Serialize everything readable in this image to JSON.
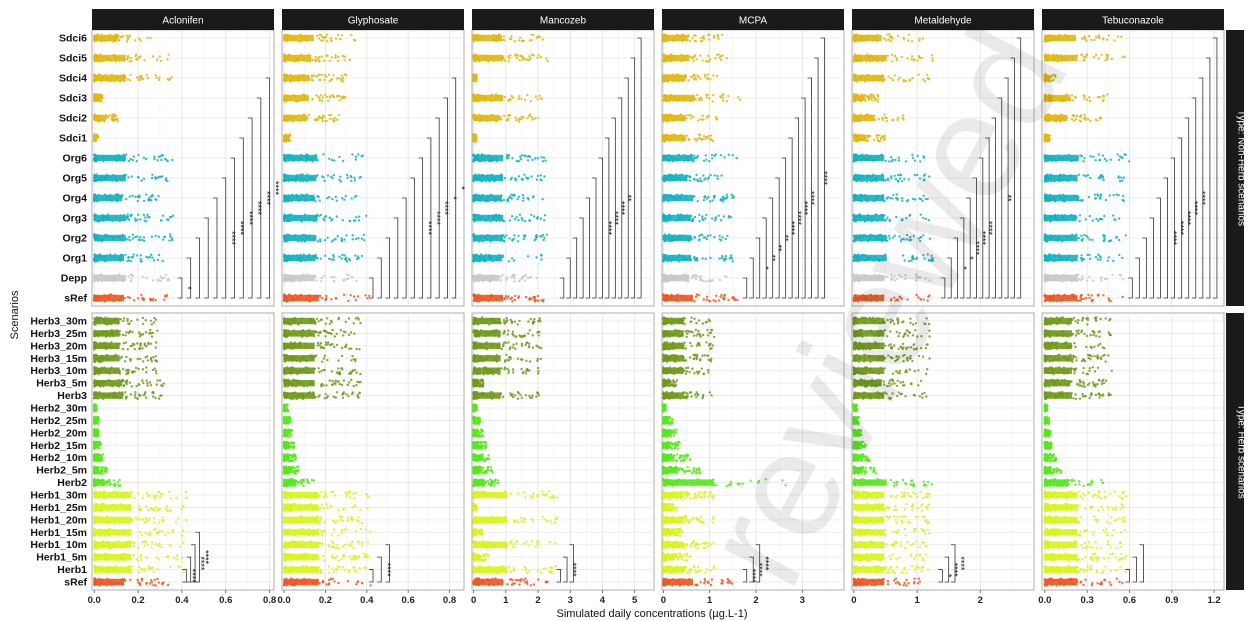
{
  "watermark_text": "reviewed",
  "chart_data": {
    "type": "scatter",
    "subtype": "faceted jitter strip plot with significance brackets",
    "xlabel": "Simulated daily concentrations (µg.L-1)",
    "ylabel": "Scenarios",
    "grid": true,
    "legend": "none",
    "columns": [
      {
        "name": "Aclonifen",
        "ticks": [
          0,
          0.2,
          0.4,
          0.6,
          0.8
        ],
        "tick_labels": [
          "0.0",
          "0.2",
          "0.4",
          "0.6",
          "0.8"
        ],
        "xlim": [
          -0.01,
          0.82
        ]
      },
      {
        "name": "Glyphosate",
        "ticks": [
          0,
          0.2,
          0.4,
          0.6,
          0.8
        ],
        "tick_labels": [
          "0.0",
          "0.2",
          "0.4",
          "0.6",
          "0.8"
        ],
        "xlim": [
          -0.01,
          0.87
        ]
      },
      {
        "name": "Mancozeb",
        "ticks": [
          0,
          1,
          2,
          3,
          4,
          5
        ],
        "tick_labels": [
          "0",
          "1",
          "2",
          "3",
          "4",
          "5"
        ],
        "xlim": [
          -0.05,
          5.6
        ]
      },
      {
        "name": "MCPA",
        "ticks": [
          0,
          1,
          2,
          3
        ],
        "tick_labels": [
          "0",
          "1",
          "2",
          "3"
        ],
        "xlim": [
          -0.03,
          3.9
        ]
      },
      {
        "name": "Metaldehyde",
        "ticks": [
          0,
          1,
          2
        ],
        "tick_labels": [
          "0",
          "1",
          "2"
        ],
        "xlim": [
          -0.03,
          2.85
        ]
      },
      {
        "name": "Tebuconazole",
        "ticks": [
          0,
          0.3,
          0.6,
          0.9,
          1.2
        ],
        "tick_labels": [
          "0.0",
          "0.3",
          "0.6",
          "0.9",
          "1.2"
        ],
        "xlim": [
          -0.02,
          1.27
        ]
      }
    ],
    "rows": [
      {
        "name": "Type: Non-Herb scenarios",
        "categories": [
          "Sdci6",
          "Sdci5",
          "Sdci4",
          "Sdci3",
          "Sdci2",
          "Sdci1",
          "Org6",
          "Org5",
          "Org4",
          "Org3",
          "Org2",
          "Org1",
          "Depp",
          "sRef"
        ],
        "colors": [
          "#e2b70e",
          "#e2b70e",
          "#e2b70e",
          "#e2b70e",
          "#e2b70e",
          "#e2b70e",
          "#12b3c1",
          "#12b3c1",
          "#12b3c1",
          "#12b3c1",
          "#12b3c1",
          "#12b3c1",
          "#c8c8c8",
          "#f0561e"
        ],
        "extents": [
          [
            0.26,
            0.36,
            0.36,
            0.04,
            0.11,
            0.02,
            0.36,
            0.36,
            0.32,
            0.36,
            0.36,
            0.34,
            0.36,
            0.34
          ],
          [
            0.36,
            0.33,
            0.31,
            0.3,
            0.27,
            0.03,
            0.4,
            0.39,
            0.37,
            0.4,
            0.39,
            0.38,
            0.37,
            0.42
          ],
          [
            2.2,
            2.3,
            0.1,
            2.3,
            2.0,
            0.1,
            2.3,
            2.3,
            2.2,
            2.3,
            2.3,
            2.2,
            2.0,
            2.3
          ],
          [
            1.3,
            1.4,
            1.2,
            1.7,
            1.2,
            1.2,
            1.6,
            1.3,
            1.6,
            1.5,
            1.5,
            1.5,
            1.4,
            1.6
          ],
          [
            1.1,
            1.3,
            1.2,
            0.4,
            0.8,
            0.5,
            1.2,
            1.2,
            1.2,
            1.2,
            1.3,
            1.3,
            1.2,
            1.2
          ],
          [
            0.55,
            0.58,
            0.08,
            0.45,
            0.4,
            0.04,
            0.6,
            0.58,
            0.6,
            0.56,
            0.58,
            0.58,
            0.56,
            0.58
          ]
        ],
        "brackets": [
          {
            "x": [
              0.4,
              0.44,
              0.48,
              0.52,
              0.56,
              0.6,
              0.64,
              0.68,
              0.72,
              0.76,
              0.8,
              0.84,
              0.88
            ],
            "labels": [
              "*",
              "",
              "",
              "",
              "",
              "****",
              "****",
              "****",
              "****",
              "****",
              "****",
              "****",
              "****"
            ]
          },
          {
            "x": [
              0.43,
              0.47,
              0.51,
              0.55,
              0.59,
              0.63,
              0.67,
              0.71,
              0.75,
              0.79,
              0.83,
              0.87,
              0.91
            ],
            "labels": [
              "",
              "",
              "",
              "",
              "",
              "",
              "****",
              "****",
              "****",
              "*",
              "*",
              "",
              ""
            ]
          },
          {
            "x": [
              2.8,
              3.0,
              3.2,
              3.4,
              3.6,
              3.8,
              4.0,
              4.2,
              4.4,
              4.6,
              4.8,
              5.0,
              5.2
            ],
            "labels": [
              "",
              "",
              "",
              "",
              "",
              "",
              "****",
              "****",
              "****",
              "**",
              "",
              "",
              ""
            ]
          },
          {
            "x": [
              1.8,
              1.94,
              2.08,
              2.22,
              2.36,
              2.5,
              2.64,
              2.78,
              2.92,
              3.06,
              3.2,
              3.34,
              3.48
            ],
            "labels": [
              "",
              "",
              "*",
              "**",
              "**",
              "**",
              "****",
              "****",
              "****",
              "****",
              "",
              "****",
              ""
            ]
          },
          {
            "x": [
              1.44,
              1.54,
              1.64,
              1.74,
              1.84,
              1.94,
              2.04,
              2.14,
              2.24,
              2.34,
              2.44,
              2.54,
              2.64
            ],
            "labels": [
              "",
              "",
              "*",
              "*",
              "****",
              "****",
              "****",
              "",
              "",
              "**",
              "",
              "",
              ""
            ]
          },
          {
            "x": [
              0.62,
              0.67,
              0.72,
              0.77,
              0.82,
              0.87,
              0.92,
              0.97,
              1.02,
              1.07,
              1.12,
              1.17,
              1.22
            ],
            "labels": [
              "",
              "",
              "",
              "",
              "",
              "****",
              "****",
              "****",
              "****",
              "****",
              "",
              "",
              ""
            ]
          }
        ]
      },
      {
        "name": "Type: Herb scenarios",
        "categories": [
          "Herb3_30m",
          "Herb3_25m",
          "Herb3_20m",
          "Herb3_15m",
          "Herb3_10m",
          "Herb3_5m",
          "Herb3",
          "Herb2_30m",
          "Herb2_25m",
          "Herb2_20m",
          "Herb2_15m",
          "Herb2_10m",
          "Herb2_5m",
          "Herb2",
          "Herb1_30m",
          "Herb1_25m",
          "Herb1_20m",
          "Herb1_15m",
          "Herb1_10m",
          "Herb1_5m",
          "Herb1",
          "sRef"
        ],
        "colors": [
          "#6e9a18",
          "#6e9a18",
          "#6e9a18",
          "#6e9a18",
          "#6e9a18",
          "#6e9a18",
          "#6e9a18",
          "#52ea18",
          "#52ea18",
          "#52ea18",
          "#52ea18",
          "#52ea18",
          "#52ea18",
          "#52ea18",
          "#d7f518",
          "#d7f518",
          "#d7f518",
          "#d7f518",
          "#d7f518",
          "#d7f518",
          "#d7f518",
          "#f0561e"
        ],
        "extents": [
          [
            0.29,
            0.29,
            0.29,
            0.29,
            0.29,
            0.32,
            0.33,
            0.01,
            0.02,
            0.02,
            0.03,
            0.04,
            0.06,
            0.12,
            0.42,
            0.42,
            0.42,
            0.42,
            0.42,
            0.42,
            0.42,
            0.34
          ],
          [
            0.37,
            0.37,
            0.37,
            0.37,
            0.37,
            0.37,
            0.37,
            0.02,
            0.03,
            0.04,
            0.05,
            0.06,
            0.08,
            0.15,
            0.42,
            0.42,
            0.42,
            0.42,
            0.42,
            0.42,
            0.42,
            0.42
          ],
          [
            2.1,
            2.1,
            2.1,
            2.1,
            2.1,
            0.3,
            2.1,
            0.1,
            0.2,
            0.3,
            0.4,
            0.5,
            0.6,
            0.8,
            2.6,
            0.1,
            2.6,
            0.3,
            2.6,
            0.5,
            2.6,
            2.3
          ],
          [
            1.1,
            1.1,
            1.1,
            1.1,
            1.1,
            0.3,
            1.1,
            0.05,
            0.2,
            0.3,
            0.35,
            0.6,
            0.8,
            2.7,
            1.1,
            0.3,
            1.1,
            0.4,
            1.1,
            0.6,
            1.1,
            1.6
          ],
          [
            1.2,
            1.2,
            1.2,
            1.2,
            1.2,
            1.1,
            1.2,
            0.05,
            0.08,
            0.12,
            0.2,
            0.25,
            0.35,
            1.3,
            1.2,
            1.2,
            1.2,
            1.2,
            1.2,
            1.2,
            1.2,
            1.2
          ],
          [
            0.48,
            0.48,
            0.48,
            0.48,
            0.48,
            0.45,
            0.48,
            0.02,
            0.03,
            0.04,
            0.05,
            0.08,
            0.12,
            0.42,
            0.58,
            0.58,
            0.58,
            0.58,
            0.58,
            0.58,
            0.58,
            0.58
          ]
        ],
        "brackets": [
          {
            "x": [
              0.42,
              0.44,
              0.46,
              0.48
            ],
            "labels": [
              "****",
              "",
              "****",
              "****"
            ]
          },
          {
            "x": [
              0.43,
              0.47,
              0.51
            ],
            "labels": [
              "",
              "****",
              ""
            ]
          },
          {
            "x": [
              2.7,
              2.9,
              3.1
            ],
            "labels": [
              "",
              "****",
              ""
            ]
          },
          {
            "x": [
              1.8,
              1.94,
              2.08
            ],
            "labels": [
              "****",
              "****",
              "****"
            ]
          },
          {
            "x": [
              1.4,
              1.5,
              1.6
            ],
            "labels": [
              "*",
              "****",
              "****"
            ]
          },
          {
            "x": [
              0.6,
              0.65,
              0.7
            ],
            "labels": [
              "",
              "",
              ""
            ]
          }
        ]
      }
    ]
  }
}
